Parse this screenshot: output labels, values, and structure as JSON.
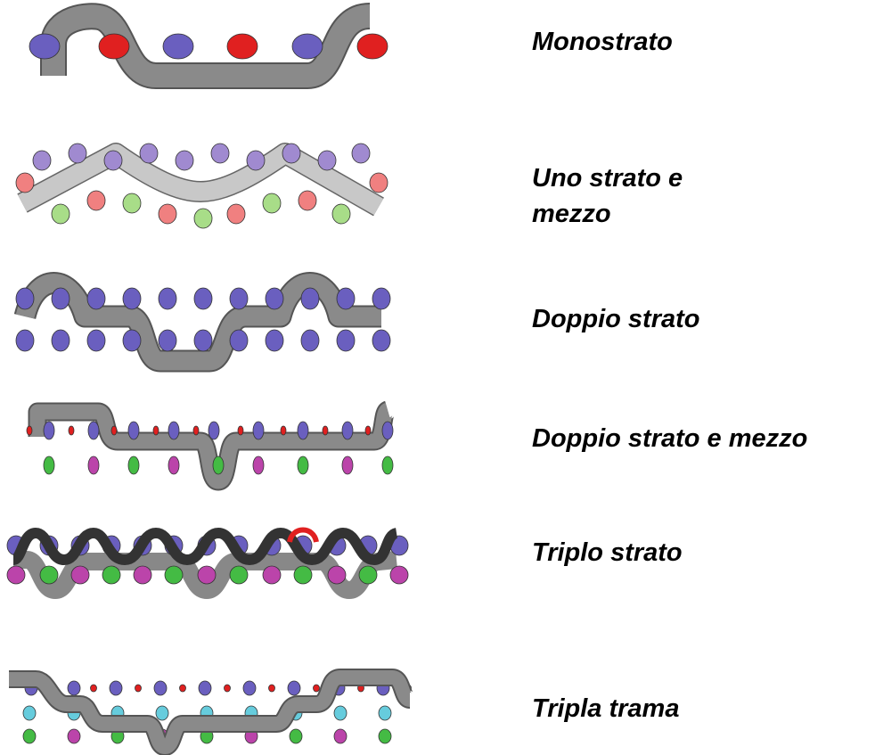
{
  "labels": [
    "Monostrato",
    "Uno strato e mezzo",
    "Doppio strato",
    "Doppio strato e mezzo",
    "Triplo strato",
    "Tripla trama"
  ]
}
